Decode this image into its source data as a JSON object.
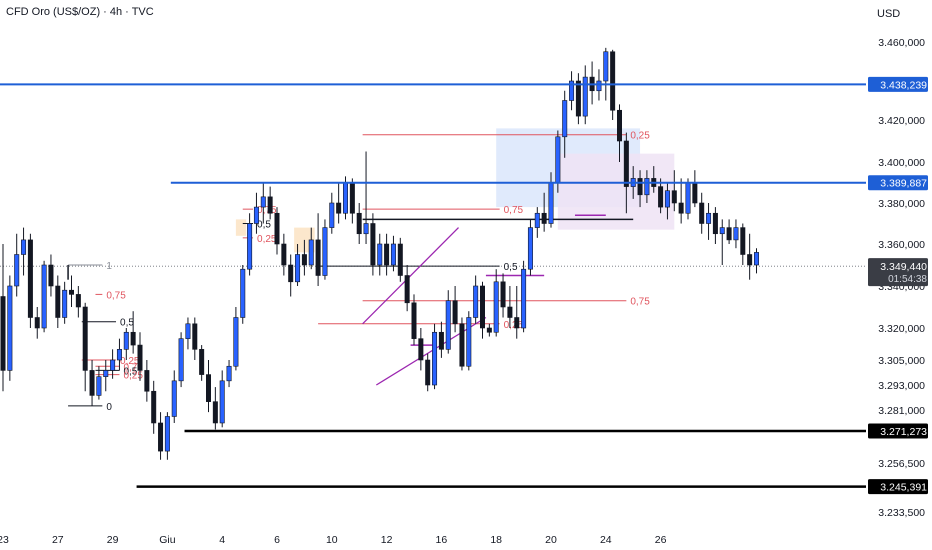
{
  "header": {
    "title": "CFD Oro (US$/OZ) · 4h · TVC",
    "currency": "USD"
  },
  "colors": {
    "up": "#2962ff",
    "down": "#131722",
    "level_blue": "#1e5fd6",
    "fib_red": "#e0555f",
    "channel": "#9c27b0",
    "black_level": "#000000"
  },
  "chart_data": {
    "type": "candlestick",
    "title": "CFD Oro (US$/OZ) · 4h · TVC",
    "currency": "USD",
    "ylim": [
      3225000,
      3475000
    ],
    "y_ticks": [
      "3.460,000",
      "3.420,000",
      "3.400,000",
      "3.380,000",
      "3.360,000",
      "3.340,000",
      "3.320,000",
      "3.305,000",
      "3.293,000",
      "3.281,000",
      "3.256,500",
      "3.233,500"
    ],
    "y_tick_values": [
      3460000,
      3420000,
      3400000,
      3380000,
      3360000,
      3340000,
      3320000,
      3305000,
      3293000,
      3281000,
      3256500,
      3233500
    ],
    "x_ticks": [
      "23",
      "27",
      "29",
      "Giu",
      "4",
      "6",
      "10",
      "12",
      "16",
      "18",
      "20",
      "24",
      "26"
    ],
    "x_tick_positions": [
      0,
      8,
      16,
      24,
      32,
      40,
      48,
      56,
      64,
      72,
      80,
      88,
      96
    ],
    "candles": [
      [
        3335000,
        3360000,
        3290000,
        3300000
      ],
      [
        3300000,
        3345000,
        3295000,
        3340000
      ],
      [
        3340000,
        3365000,
        3335000,
        3355000
      ],
      [
        3355000,
        3368000,
        3345000,
        3362000
      ],
      [
        3362000,
        3365000,
        3320000,
        3325000
      ],
      [
        3325000,
        3330000,
        3315000,
        3320000
      ],
      [
        3320000,
        3352000,
        3318000,
        3350000
      ],
      [
        3350000,
        3355000,
        3335000,
        3340000
      ],
      [
        3340000,
        3345000,
        3320000,
        3325000
      ],
      [
        3325000,
        3342000,
        3322000,
        3338000
      ],
      [
        3338000,
        3345000,
        3330000,
        3336000
      ],
      [
        3336000,
        3340000,
        3325000,
        3330000
      ],
      [
        3330000,
        3332000,
        3290000,
        3300000
      ],
      [
        3300000,
        3305000,
        3283000,
        3288000
      ],
      [
        3288000,
        3302000,
        3286000,
        3297000
      ],
      [
        3297000,
        3305000,
        3290000,
        3300000
      ],
      [
        3300000,
        3310000,
        3296000,
        3305000
      ],
      [
        3305000,
        3315000,
        3300000,
        3310000
      ],
      [
        3310000,
        3320000,
        3305000,
        3318000
      ],
      [
        3318000,
        3328000,
        3308000,
        3312000
      ],
      [
        3312000,
        3318000,
        3295000,
        3300000
      ],
      [
        3300000,
        3305000,
        3285000,
        3290000
      ],
      [
        3290000,
        3295000,
        3270000,
        3275000
      ],
      [
        3275000,
        3280000,
        3258000,
        3262000
      ],
      [
        3262000,
        3280000,
        3258000,
        3278000
      ],
      [
        3278000,
        3300000,
        3275000,
        3295000
      ],
      [
        3295000,
        3318000,
        3292000,
        3315000
      ],
      [
        3315000,
        3325000,
        3310000,
        3322000
      ],
      [
        3322000,
        3325000,
        3305000,
        3310000
      ],
      [
        3310000,
        3312000,
        3295000,
        3298000
      ],
      [
        3298000,
        3305000,
        3280000,
        3285000
      ],
      [
        3285000,
        3292000,
        3272000,
        3275000
      ],
      [
        3275000,
        3300000,
        3273000,
        3295000
      ],
      [
        3295000,
        3305000,
        3292000,
        3302000
      ],
      [
        3302000,
        3330000,
        3300000,
        3325000
      ],
      [
        3325000,
        3350000,
        3322000,
        3348000
      ],
      [
        3348000,
        3375000,
        3345000,
        3370000
      ],
      [
        3370000,
        3385000,
        3365000,
        3378000
      ],
      [
        3378000,
        3390000,
        3370000,
        3383000
      ],
      [
        3383000,
        3388000,
        3372000,
        3375000
      ],
      [
        3375000,
        3378000,
        3355000,
        3360000
      ],
      [
        3360000,
        3365000,
        3345000,
        3350000
      ],
      [
        3350000,
        3355000,
        3335000,
        3342000
      ],
      [
        3342000,
        3360000,
        3340000,
        3355000
      ],
      [
        3355000,
        3362000,
        3345000,
        3350000
      ],
      [
        3350000,
        3368000,
        3348000,
        3362000
      ],
      [
        3362000,
        3375000,
        3340000,
        3345000
      ],
      [
        3345000,
        3372000,
        3343000,
        3368000
      ],
      [
        3368000,
        3385000,
        3365000,
        3380000
      ],
      [
        3380000,
        3390000,
        3370000,
        3375000
      ],
      [
        3375000,
        3393000,
        3372000,
        3390000
      ],
      [
        3390000,
        3392000,
        3370000,
        3375000
      ],
      [
        3375000,
        3380000,
        3360000,
        3365000
      ],
      [
        3365000,
        3405000,
        3360000,
        3370000
      ],
      [
        3370000,
        3375000,
        3345000,
        3350000
      ],
      [
        3350000,
        3365000,
        3345000,
        3360000
      ],
      [
        3360000,
        3365000,
        3345000,
        3350000
      ],
      [
        3350000,
        3364000,
        3347000,
        3360000
      ],
      [
        3360000,
        3363000,
        3342000,
        3345000
      ],
      [
        3345000,
        3350000,
        3328000,
        3332000
      ],
      [
        3332000,
        3336000,
        3312000,
        3315000
      ],
      [
        3315000,
        3320000,
        3300000,
        3305000
      ],
      [
        3305000,
        3308000,
        3290000,
        3293000
      ],
      [
        3293000,
        3322000,
        3291000,
        3318000
      ],
      [
        3318000,
        3323000,
        3306000,
        3310000
      ],
      [
        3310000,
        3338000,
        3308000,
        3333000
      ],
      [
        3333000,
        3340000,
        3318000,
        3322000
      ],
      [
        3322000,
        3325000,
        3300000,
        3302000
      ],
      [
        3302000,
        3328000,
        3300000,
        3325000
      ],
      [
        3325000,
        3345000,
        3322000,
        3340000
      ],
      [
        3340000,
        3342000,
        3315000,
        3320000
      ],
      [
        3320000,
        3322000,
        3316000,
        3318000
      ],
      [
        3318000,
        3348000,
        3316000,
        3342000
      ],
      [
        3342000,
        3346000,
        3325000,
        3330000
      ],
      [
        3330000,
        3340000,
        3320000,
        3325000
      ],
      [
        3325000,
        3340000,
        3315000,
        3320000
      ],
      [
        3320000,
        3352000,
        3318000,
        3348000
      ],
      [
        3348000,
        3372000,
        3345000,
        3368000
      ],
      [
        3368000,
        3378000,
        3363000,
        3375000
      ],
      [
        3375000,
        3385000,
        3366000,
        3370000
      ],
      [
        3370000,
        3395000,
        3368000,
        3390000
      ],
      [
        3390000,
        3415000,
        3385000,
        3412000
      ],
      [
        3412000,
        3435000,
        3402000,
        3430000
      ],
      [
        3430000,
        3445000,
        3425000,
        3440000
      ],
      [
        3440000,
        3444000,
        3418000,
        3422000
      ],
      [
        3422000,
        3448000,
        3418000,
        3442000
      ],
      [
        3442000,
        3450000,
        3428000,
        3435000
      ],
      [
        3435000,
        3446000,
        3430000,
        3440000
      ],
      [
        3440000,
        3457000,
        3430000,
        3455000
      ],
      [
        3455000,
        3456000,
        3420000,
        3425000
      ],
      [
        3425000,
        3428000,
        3400000,
        3410000
      ],
      [
        3410000,
        3414000,
        3375000,
        3388000
      ],
      [
        3388000,
        3398000,
        3382000,
        3392000
      ],
      [
        3392000,
        3396000,
        3378000,
        3384000
      ],
      [
        3384000,
        3396000,
        3380000,
        3392000
      ],
      [
        3392000,
        3398000,
        3385000,
        3388000
      ],
      [
        3388000,
        3392000,
        3375000,
        3378000
      ],
      [
        3378000,
        3390000,
        3372000,
        3386000
      ],
      [
        3386000,
        3396000,
        3376000,
        3380000
      ],
      [
        3380000,
        3392000,
        3370000,
        3375000
      ],
      [
        3375000,
        3392000,
        3372000,
        3390000
      ],
      [
        3390000,
        3396000,
        3378000,
        3380000
      ],
      [
        3380000,
        3385000,
        3365000,
        3370000
      ],
      [
        3370000,
        3380000,
        3362000,
        3375000
      ],
      [
        3375000,
        3378000,
        3360000,
        3365000
      ],
      [
        3365000,
        3372000,
        3350000,
        3368000
      ],
      [
        3368000,
        3372000,
        3360000,
        3362000
      ],
      [
        3362000,
        3372000,
        3358000,
        3368000
      ],
      [
        3368000,
        3370000,
        3350000,
        3355000
      ],
      [
        3355000,
        3365000,
        3343000,
        3350000
      ],
      [
        3350000,
        3358000,
        3346000,
        3356000
      ]
    ],
    "level_labels": [
      "3.438,239",
      "3.389,887",
      "3.349,440",
      "01:54:38",
      "3.271,273",
      "3.245,391"
    ],
    "horizontal_levels": [
      {
        "price": 3438239,
        "x_start": -1,
        "label_index": 0,
        "color": "level_blue",
        "width": 2
      },
      {
        "price": 3389887,
        "x_start": 24.5,
        "label_index": 1,
        "color": "level_blue",
        "width": 2
      },
      {
        "price": 3271273,
        "x_start": 26.5,
        "label_index": 4,
        "color": "black_level",
        "width": 2.5
      },
      {
        "price": 3245391,
        "x_start": 19.5,
        "label_index": 5,
        "color": "black_level",
        "width": 2.5
      }
    ],
    "current_price": {
      "price": 3349440,
      "label_index": 2,
      "countdown_index": 3
    },
    "fib_labels": [
      "1",
      "0,75",
      "0,5",
      "0,25",
      "0",
      "0,75",
      "0,5",
      "0,25",
      "0,75",
      "0,5",
      "0,25",
      "0,25",
      "0,75",
      "0,5",
      "0,75",
      "0,25"
    ],
    "fib_levels": [
      {
        "price": 3350000,
        "x1": 9.5,
        "x2": 14.5,
        "color": "gray",
        "label_index": 0
      },
      {
        "price": 3336000,
        "x1": 13.5,
        "x2": 14.5,
        "color": "fib_red",
        "label_index": 1
      },
      {
        "price": 3323000,
        "x1": 11.5,
        "x2": 16.5,
        "color": "down",
        "label_index": 2
      },
      {
        "price": 3305000,
        "x1": 11.5,
        "x2": 16.5,
        "color": "fib_red",
        "label_index": 3
      },
      {
        "price": 3283000,
        "x1": 9.5,
        "x2": 14.5,
        "color": "down",
        "label_index": 4
      },
      {
        "price": 3377000,
        "x1": 35,
        "x2": 36.5,
        "color": "fib_red",
        "label_index": 5
      },
      {
        "price": 3370000,
        "x1": 35,
        "x2": 36.5,
        "color": "down",
        "label_index": 6
      },
      {
        "price": 3363000,
        "x1": 35,
        "x2": 36.5,
        "color": "fib_red",
        "label_index": 7
      },
      {
        "price": 3302000,
        "x1": 13.5,
        "x2": 17,
        "color": "fib_red",
        "label_index": 8
      },
      {
        "price": 3300000,
        "x1": 13.5,
        "x2": 17,
        "color": "down",
        "label_index": 9
      },
      {
        "price": 3298000,
        "x1": 13.5,
        "x2": 17,
        "color": "fib_red",
        "label_index": 10
      },
      {
        "price": 3413000,
        "x1": 52.5,
        "x2": 91,
        "color": "fib_red",
        "label_index": 11
      },
      {
        "price": 3377000,
        "x1": 52.5,
        "x2": 72.5,
        "color": "fib_red",
        "label_index": 12
      },
      {
        "price": 3349440,
        "x1": 46,
        "x2": 72.5,
        "color": "down",
        "label_index": 13
      },
      {
        "price": 3333000,
        "x1": 52.5,
        "x2": 91,
        "color": "fib_red",
        "label_index": 14
      },
      {
        "price": 3322000,
        "x1": 46,
        "x2": 72.5,
        "color": "fib_red",
        "label_index": 15
      }
    ],
    "extra_lines": [
      {
        "x1": 52.5,
        "p1": 3372000,
        "x2": 92,
        "p2": 3372000,
        "color": "down"
      },
      {
        "x1": 70.5,
        "p1": 3345000,
        "x2": 79,
        "p2": 3345000,
        "color": "channel"
      },
      {
        "x1": 83.5,
        "p1": 3374000,
        "x2": 88,
        "p2": 3374000,
        "color": "channel"
      },
      {
        "x1": 59.5,
        "p1": 3312000,
        "x2": 63,
        "p2": 3312000,
        "color": "channel"
      },
      {
        "x1": 9.5,
        "p1": 3350000,
        "x2": 9.5,
        "p2": 3343000,
        "color": "down"
      }
    ],
    "channel": {
      "upper": [
        [
          52.5,
          3322000
        ],
        [
          66.5,
          3368000
        ]
      ],
      "lower": [
        [
          54.5,
          3293000
        ],
        [
          70.5,
          3325000
        ]
      ]
    },
    "boxes": [
      {
        "x1": 72,
        "x2": 93,
        "p_top": 3416000,
        "p_bot": 3378000,
        "fill": "#dbe6fb"
      },
      {
        "x1": 81,
        "x2": 98,
        "p_top": 3404000,
        "p_bot": 3367000,
        "fill": "#efe3f5"
      },
      {
        "x1": 42.5,
        "x2": 45.5,
        "p_top": 3368000,
        "p_bot": 3356000,
        "fill": "#fbe3c3"
      },
      {
        "x1": 34,
        "x2": 35.5,
        "p_top": 3372000,
        "p_bot": 3364000,
        "fill": "#fbe3c3"
      }
    ]
  }
}
